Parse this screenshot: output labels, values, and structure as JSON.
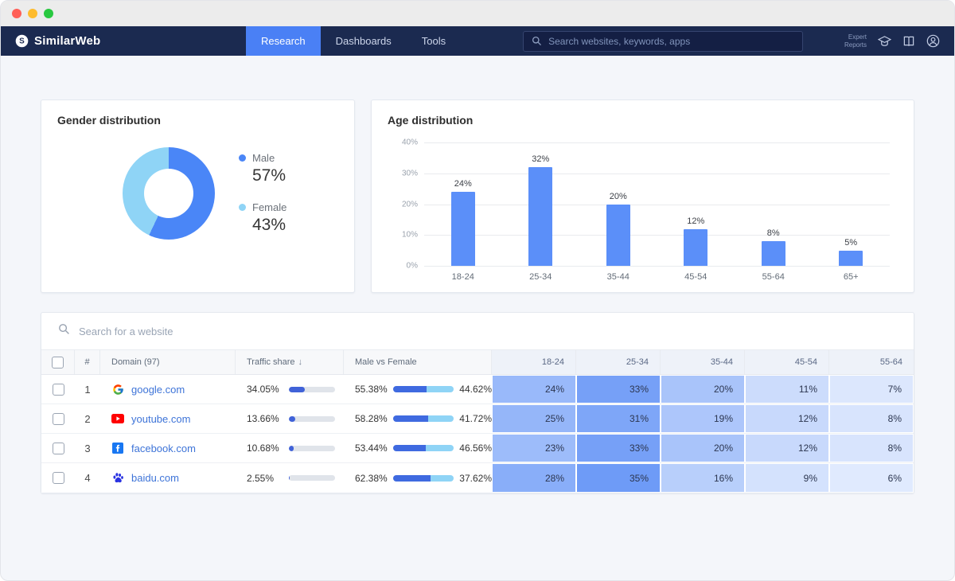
{
  "window": {
    "controls": [
      "close",
      "minimize",
      "zoom"
    ]
  },
  "navbar": {
    "brand": "SimilarWeb",
    "items": [
      {
        "label": "Research",
        "active": true
      },
      {
        "label": "Dashboards",
        "active": false
      },
      {
        "label": "Tools",
        "active": false
      }
    ],
    "search_placeholder": "Search websites, keywords, apps",
    "expert_line1": "Expert",
    "expert_line2": "Reports"
  },
  "gender": {
    "title": "Gender distribution",
    "legend": [
      {
        "label": "Male",
        "value": "57%"
      },
      {
        "label": "Female",
        "value": "43%"
      }
    ]
  },
  "age": {
    "title": "Age distribution"
  },
  "table": {
    "search_placeholder": "Search for a website",
    "columns": {
      "rank": "#",
      "domain": "Domain (97)",
      "traffic": "Traffic share",
      "sort_arrow": "↓",
      "male_female": "Male vs Female"
    },
    "age_columns": [
      "18-24",
      "25-34",
      "35-44",
      "45-54",
      "55-64"
    ],
    "rows": [
      {
        "rank": "1",
        "domain": "google.com",
        "icon": "google-icon",
        "traffic_share": "34.05%",
        "traffic_value": 34.05,
        "male": "55.38%",
        "male_value": 55.38,
        "female": "44.62%",
        "female_value": 44.62,
        "ages": [
          24,
          33,
          20,
          11,
          7
        ]
      },
      {
        "rank": "2",
        "domain": "youtube.com",
        "icon": "youtube-icon",
        "traffic_share": "13.66%",
        "traffic_value": 13.66,
        "male": "58.28%",
        "male_value": 58.28,
        "female": "41.72%",
        "female_value": 41.72,
        "ages": [
          25,
          31,
          19,
          12,
          8
        ]
      },
      {
        "rank": "3",
        "domain": "facebook.com",
        "icon": "facebook-icon",
        "traffic_share": "10.68%",
        "traffic_value": 10.68,
        "male": "53.44%",
        "male_value": 53.44,
        "female": "46.56%",
        "female_value": 46.56,
        "ages": [
          23,
          33,
          20,
          12,
          8
        ]
      },
      {
        "rank": "4",
        "domain": "baidu.com",
        "icon": "baidu-icon",
        "traffic_share": "2.55%",
        "traffic_value": 2.55,
        "male": "62.38%",
        "male_value": 62.38,
        "female": "37.62%",
        "female_value": 37.62,
        "ages": [
          28,
          35,
          16,
          9,
          6
        ]
      }
    ],
    "heat_colors": {
      "low": [
        247,
        250,
        255
      ],
      "high": [
        110,
        155,
        247
      ]
    }
  },
  "colors": {
    "accent_blue": "#4a80f5",
    "navy": "#1b2a50",
    "male_blue": "#4a86f7",
    "female_blue": "#8fd4f6",
    "bar_blue": "#5b8ff9",
    "traffic_bar_blue": "#4062d8"
  },
  "chart_data": [
    {
      "type": "pie",
      "title": "Gender distribution",
      "labels": [
        "Male",
        "Female"
      ],
      "values": [
        57,
        43
      ],
      "colors": [
        "#4a86f7",
        "#8fd4f6"
      ],
      "donut": true,
      "legend_position": "right"
    },
    {
      "type": "bar",
      "title": "Age distribution",
      "categories": [
        "18-24",
        "25-34",
        "35-44",
        "45-54",
        "55-64",
        "65+"
      ],
      "values": [
        24,
        32,
        20,
        12,
        8,
        5
      ],
      "xlabel": "",
      "ylabel": "",
      "ylim": [
        0,
        40
      ],
      "yticks": [
        0,
        10,
        20,
        30,
        40
      ],
      "bar_color": "#5b8ff9",
      "grid": true,
      "data_labels": "above"
    },
    {
      "type": "heatmap",
      "title": "Age distribution by domain (%)",
      "x_labels": [
        "18-24",
        "25-34",
        "35-44",
        "45-54",
        "55-64"
      ],
      "y_labels": [
        "google.com",
        "youtube.com",
        "facebook.com",
        "baidu.com"
      ],
      "values": [
        [
          24,
          33,
          20,
          11,
          7
        ],
        [
          25,
          31,
          19,
          12,
          8
        ],
        [
          23,
          33,
          20,
          12,
          8
        ],
        [
          28,
          35,
          16,
          9,
          6
        ]
      ],
      "unit": "%"
    }
  ]
}
